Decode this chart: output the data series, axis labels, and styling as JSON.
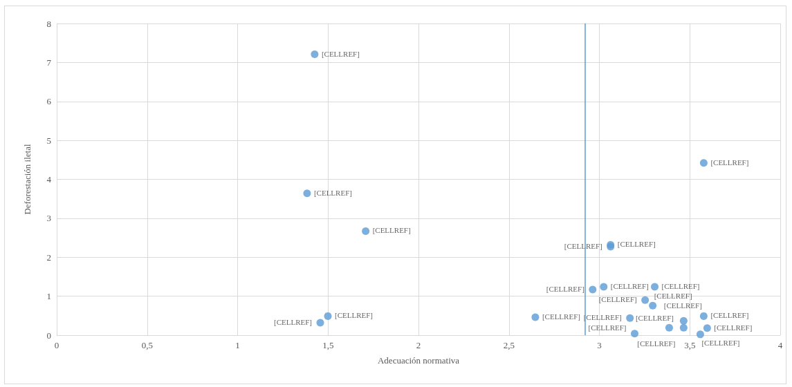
{
  "chart_data": {
    "type": "scatter",
    "xlabel": "Adecuación normativa",
    "ylabel": "Deforestación iletal",
    "x": [
      1.426,
      1.384,
      1.708,
      1.499,
      1.457,
      2.646,
      2.963,
      3.024,
      3.062,
      3.062,
      3.306,
      3.253,
      3.295,
      3.169,
      3.195,
      3.386,
      3.466,
      3.466,
      3.577,
      3.577,
      3.596,
      3.558
    ],
    "series": [
      {
        "color": "#5b9bd5",
        "values": [
          7.21,
          3.64,
          2.67,
          0.49,
          0.32,
          0.46,
          1.17,
          1.24,
          2.32,
          2.27,
          1.24,
          0.9,
          0.76,
          0.44,
          0.04,
          0.19,
          0.37,
          0.19,
          0.49,
          4.42,
          0.18,
          0.02
        ],
        "value_labels": [
          "[CELLREF]",
          "[CELLREF]",
          "[CELLREF]",
          "[CELLREF]",
          "[CELLREF]",
          "[CELLREF]",
          "[CELLREF]",
          "[CELLREF]",
          "[CELLREF]",
          "[CELLREF]",
          "[CELLREF]",
          "[CELLREF]",
          "[CELLREF]",
          "[CELLREF]",
          "[CELLREF]",
          "[CELLREF]",
          "[CELLREF]",
          "[CELLREF]",
          "[CELLREF]",
          "[CELLREF]",
          "[CELLREF]",
          "[CELLREF]"
        ]
      }
    ],
    "xlim": [
      0,
      4
    ],
    "xticks": [
      0,
      {
        "value": 0.5,
        "label": "0,5"
      },
      1,
      {
        "value": 1.5,
        "label": "1,5"
      },
      2,
      {
        "value": 2.5,
        "label": "2,5"
      },
      3,
      {
        "value": 3.5,
        "label": "3,5"
      },
      4
    ],
    "ylim": [
      0,
      8
    ],
    "yticks": [
      0,
      1,
      2,
      3,
      4,
      5,
      6,
      7,
      8
    ],
    "ref_lines": [
      {
        "axis": "x",
        "value": 2.921,
        "color": "#5b9bd5"
      }
    ],
    "grid": true,
    "marker": "circle"
  }
}
